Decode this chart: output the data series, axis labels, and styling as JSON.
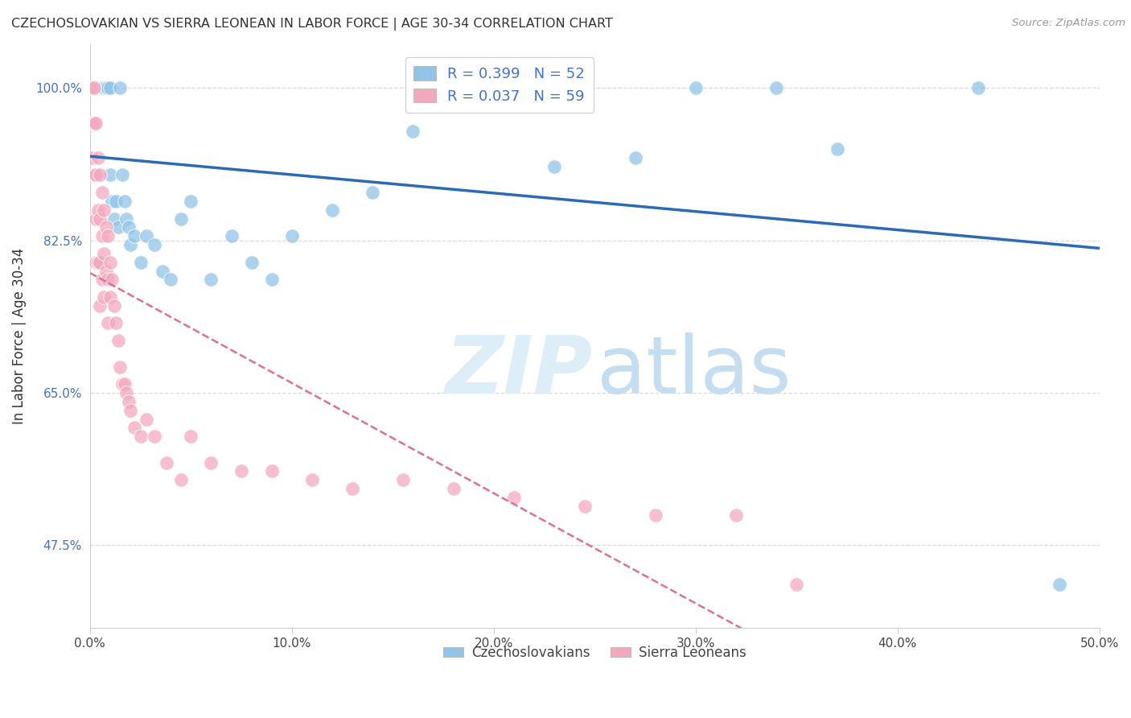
{
  "title": "CZECHOSLOVAKIAN VS SIERRA LEONEAN IN LABOR FORCE | AGE 30-34 CORRELATION CHART",
  "source": "Source: ZipAtlas.com",
  "ylabel": "In Labor Force | Age 30-34",
  "xlim": [
    0.0,
    0.5
  ],
  "ylim": [
    0.38,
    1.05
  ],
  "yticks": [
    0.475,
    0.65,
    0.825,
    1.0
  ],
  "ytick_labels": [
    "47.5%",
    "65.0%",
    "82.5%",
    "100.0%"
  ],
  "xticks": [
    0.0,
    0.1,
    0.2,
    0.3,
    0.4,
    0.5
  ],
  "xtick_labels": [
    "0.0%",
    "10.0%",
    "20.0%",
    "30.0%",
    "40.0%",
    "50.0%"
  ],
  "blue_color": "#90c4e8",
  "pink_color": "#f4a8be",
  "blue_line_color": "#2b6bb5",
  "pink_line_color": "#e07090",
  "legend_R_blue": "R = 0.399",
  "legend_N_blue": "N = 52",
  "legend_R_pink": "R = 0.037",
  "legend_N_pink": "N = 59",
  "blue_x": [
    0.001,
    0.002,
    0.002,
    0.003,
    0.003,
    0.004,
    0.004,
    0.005,
    0.005,
    0.005,
    0.006,
    0.006,
    0.007,
    0.007,
    0.008,
    0.009,
    0.01,
    0.01,
    0.011,
    0.012,
    0.013,
    0.014,
    0.015,
    0.016,
    0.017,
    0.018,
    0.019,
    0.02,
    0.022,
    0.025,
    0.028,
    0.032,
    0.036,
    0.04,
    0.045,
    0.05,
    0.06,
    0.07,
    0.08,
    0.09,
    0.1,
    0.12,
    0.14,
    0.16,
    0.2,
    0.23,
    0.27,
    0.3,
    0.34,
    0.37,
    0.44,
    0.48
  ],
  "blue_y": [
    1.0,
    1.0,
    1.0,
    1.0,
    1.0,
    1.0,
    1.0,
    1.0,
    1.0,
    1.0,
    1.0,
    1.0,
    1.0,
    1.0,
    1.0,
    1.0,
    1.0,
    0.9,
    0.87,
    0.85,
    0.87,
    0.84,
    1.0,
    0.9,
    0.87,
    0.85,
    0.84,
    0.82,
    0.83,
    0.8,
    0.83,
    0.82,
    0.79,
    0.78,
    0.85,
    0.87,
    0.78,
    0.83,
    0.8,
    0.78,
    0.83,
    0.86,
    0.88,
    0.95,
    1.0,
    0.91,
    0.92,
    1.0,
    1.0,
    0.93,
    1.0,
    0.43
  ],
  "pink_x": [
    0.001,
    0.001,
    0.001,
    0.002,
    0.002,
    0.002,
    0.003,
    0.003,
    0.003,
    0.003,
    0.004,
    0.004,
    0.004,
    0.005,
    0.005,
    0.005,
    0.005,
    0.006,
    0.006,
    0.006,
    0.007,
    0.007,
    0.007,
    0.008,
    0.008,
    0.009,
    0.009,
    0.009,
    0.01,
    0.01,
    0.011,
    0.012,
    0.013,
    0.014,
    0.015,
    0.016,
    0.017,
    0.018,
    0.019,
    0.02,
    0.022,
    0.025,
    0.028,
    0.032,
    0.038,
    0.045,
    0.05,
    0.06,
    0.075,
    0.09,
    0.11,
    0.13,
    0.155,
    0.18,
    0.21,
    0.245,
    0.28,
    0.32,
    0.35
  ],
  "pink_y": [
    1.0,
    0.96,
    0.92,
    1.0,
    0.96,
    0.9,
    0.96,
    0.9,
    0.85,
    0.8,
    0.92,
    0.86,
    0.8,
    0.9,
    0.85,
    0.8,
    0.75,
    0.88,
    0.83,
    0.78,
    0.86,
    0.81,
    0.76,
    0.84,
    0.79,
    0.83,
    0.78,
    0.73,
    0.8,
    0.76,
    0.78,
    0.75,
    0.73,
    0.71,
    0.68,
    0.66,
    0.66,
    0.65,
    0.64,
    0.63,
    0.61,
    0.6,
    0.62,
    0.6,
    0.57,
    0.55,
    0.6,
    0.57,
    0.56,
    0.56,
    0.55,
    0.54,
    0.55,
    0.54,
    0.53,
    0.52,
    0.51,
    0.51,
    0.43
  ],
  "watermark_zip": "ZIP",
  "watermark_atlas": "atlas",
  "background_color": "#ffffff",
  "grid_color": "#dddddd"
}
